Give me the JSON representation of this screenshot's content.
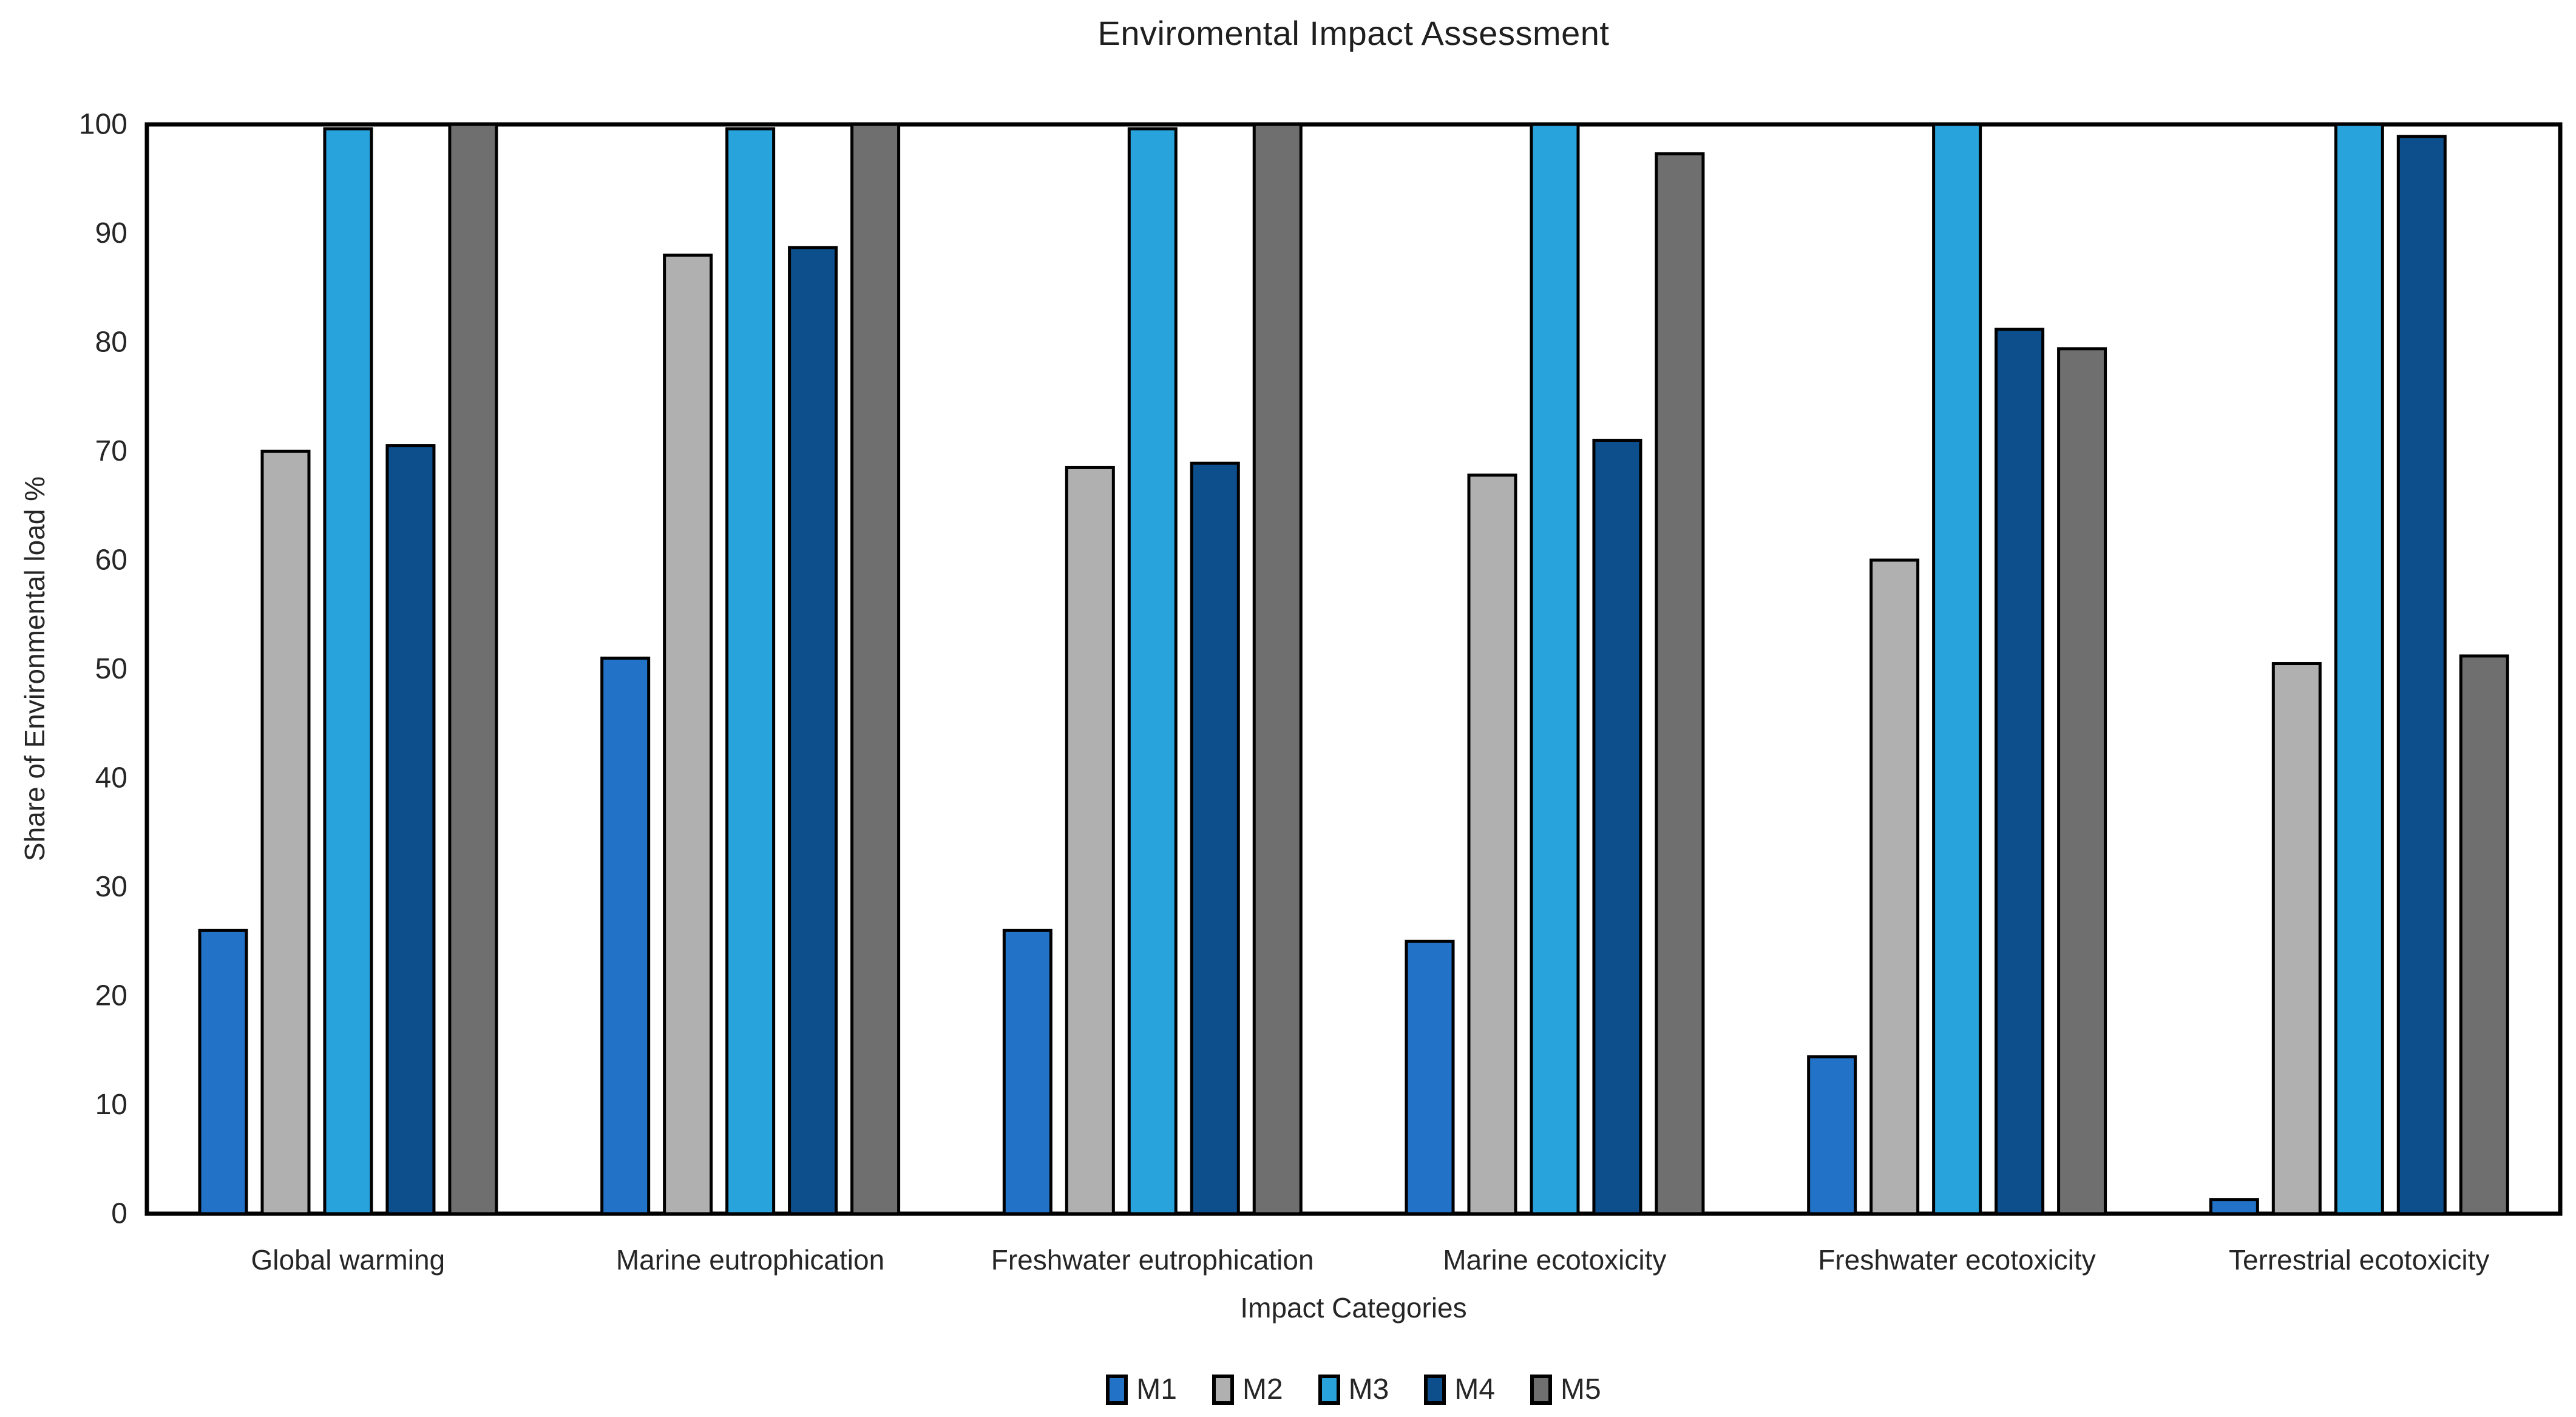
{
  "title": "Enviromental Impact Assessment",
  "chart_data": {
    "type": "bar",
    "title": "Enviromental Impact Assessment",
    "xlabel": "Impact Categories",
    "ylabel": "Share of Environmental load %",
    "ylim": [
      0,
      100
    ],
    "ytick_step": 10,
    "ytick_labels": [
      "0",
      "10",
      "20",
      "30",
      "40",
      "50",
      "60",
      "70",
      "80",
      "90",
      "100"
    ],
    "grid": false,
    "legend_position": "bottom",
    "plot_border_color": "#000000",
    "bar_outline_color": "#000000",
    "background_color": "#ffffff",
    "categories": [
      "Global warming",
      "Marine eutrophication",
      "Freshwater eutrophication",
      "Marine ecotoxicity",
      "Freshwater ecotoxicity",
      "Terrestrial ecotoxicity"
    ],
    "series": [
      {
        "name": "M1",
        "color": "#2272C8",
        "values": [
          26,
          51,
          26,
          25,
          14.4,
          1.3
        ]
      },
      {
        "name": "M2",
        "color": "#B0B0B0",
        "values": [
          70,
          88,
          68.5,
          67.8,
          60,
          50.5
        ]
      },
      {
        "name": "M3",
        "color": "#29A3DC",
        "values": [
          99.6,
          99.6,
          99.6,
          100,
          100,
          100
        ]
      },
      {
        "name": "M4",
        "color": "#0D4F8C",
        "values": [
          70.5,
          88.7,
          68.9,
          71,
          81.2,
          98.9
        ]
      },
      {
        "name": "M5",
        "color": "#6F6F6F",
        "values": [
          100,
          100,
          100,
          97.3,
          79.4,
          51.2
        ]
      }
    ]
  }
}
